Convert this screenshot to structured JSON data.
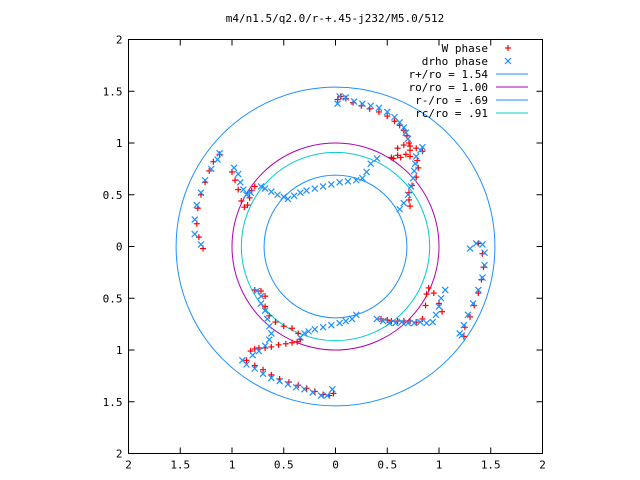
{
  "chart_data": {
    "type": "scatter",
    "title": "m4/n1.5/q2.0/r-+.45-j232/M5.0/512",
    "xlabel": "",
    "ylabel": "",
    "xlim": [
      -2,
      2
    ],
    "ylim": [
      -2,
      2
    ],
    "grid": false,
    "legend_position": "top-right",
    "x_tick_labels": [
      "2",
      "1.5",
      "1",
      "0.5",
      "0",
      "0.5",
      "1",
      "1.5",
      "2"
    ],
    "x_tick_values": [
      -2,
      -1.5,
      -1,
      -0.5,
      0,
      0.5,
      1,
      1.5,
      2
    ],
    "y_tick_labels": [
      "2",
      "1.5",
      "1",
      "0.5",
      "0",
      "0.5",
      "1",
      "1.5",
      "2"
    ],
    "y_tick_values": [
      2,
      1.5,
      1,
      0.5,
      0,
      -0.5,
      -1,
      -1.5,
      -2
    ],
    "series": [
      {
        "name": "W phase",
        "marker": "+",
        "color": "#ff0000",
        "points": [
          [
            0.02,
            1.42
          ],
          [
            0.05,
            1.45
          ],
          [
            0.1,
            1.43
          ],
          [
            0.17,
            1.39
          ],
          [
            0.25,
            1.36
          ],
          [
            0.33,
            1.33
          ],
          [
            0.42,
            1.3
          ],
          [
            0.5,
            1.26
          ],
          [
            0.57,
            1.21
          ],
          [
            0.62,
            1.17
          ],
          [
            0.66,
            1.12
          ],
          [
            0.69,
            1.07
          ],
          [
            0.71,
            1.0
          ],
          [
            0.72,
            0.93
          ],
          [
            0.68,
            0.89
          ],
          [
            0.6,
            0.88
          ],
          [
            0.54,
            0.86
          ],
          [
            0.56,
            0.85
          ],
          [
            0.63,
            0.86
          ],
          [
            0.72,
            0.87
          ],
          [
            0.79,
            0.83
          ],
          [
            0.8,
            0.76
          ],
          [
            0.78,
            0.67
          ],
          [
            0.74,
            0.59
          ],
          [
            0.71,
            0.52
          ],
          [
            0.71,
            0.45
          ],
          [
            0.72,
            0.39
          ],
          [
            0.84,
            0.92
          ],
          [
            0.78,
            0.95
          ],
          [
            0.72,
            0.97
          ],
          [
            0.66,
            0.98
          ],
          [
            0.6,
            0.95
          ],
          [
            1.38,
            0.03
          ],
          [
            1.42,
            -0.07
          ],
          [
            1.43,
            -0.2
          ],
          [
            1.41,
            -0.32
          ],
          [
            1.38,
            -0.45
          ],
          [
            1.34,
            -0.57
          ],
          [
            1.3,
            -0.68
          ],
          [
            1.25,
            -0.78
          ],
          [
            1.24,
            -0.87
          ],
          [
            1.03,
            -0.63
          ],
          [
            1.0,
            -0.55
          ],
          [
            0.95,
            -0.45
          ],
          [
            0.9,
            -0.4
          ],
          [
            0.88,
            -0.46
          ],
          [
            0.87,
            -0.57
          ],
          [
            0.84,
            -0.7
          ],
          [
            0.78,
            -0.73
          ],
          [
            0.72,
            -0.72
          ],
          [
            0.66,
            -0.72
          ],
          [
            0.6,
            -0.72
          ],
          [
            0.54,
            -0.72
          ],
          [
            0.5,
            -0.71
          ],
          [
            0.44,
            -0.7
          ],
          [
            -0.02,
            -1.42
          ],
          [
            -0.06,
            -1.44
          ],
          [
            -0.12,
            -1.43
          ],
          [
            -0.2,
            -1.4
          ],
          [
            -0.28,
            -1.37
          ],
          [
            -0.36,
            -1.34
          ],
          [
            -0.45,
            -1.31
          ],
          [
            -0.54,
            -1.28
          ],
          [
            -0.62,
            -1.24
          ],
          [
            -0.7,
            -1.19
          ],
          [
            -0.78,
            -1.15
          ],
          [
            -0.86,
            -1.1
          ],
          [
            -0.82,
            -1.01
          ],
          [
            -0.78,
            -0.99
          ],
          [
            -0.74,
            -0.98
          ],
          [
            -0.68,
            -0.98
          ],
          [
            -0.62,
            -0.97
          ],
          [
            -0.55,
            -0.95
          ],
          [
            -0.48,
            -0.94
          ],
          [
            -0.42,
            -0.93
          ],
          [
            -0.37,
            -0.92
          ],
          [
            -0.34,
            -0.9
          ],
          [
            -0.36,
            -0.84
          ],
          [
            -0.42,
            -0.79
          ],
          [
            -0.5,
            -0.77
          ],
          [
            -0.58,
            -0.73
          ],
          [
            -0.64,
            -0.67
          ],
          [
            -0.68,
            -0.58
          ],
          [
            -0.68,
            -0.48
          ],
          [
            -0.72,
            -0.43
          ],
          [
            -0.78,
            -0.42
          ],
          [
            -1.28,
            -0.02
          ],
          [
            -1.32,
            0.09
          ],
          [
            -1.34,
            0.22
          ],
          [
            -1.33,
            0.37
          ],
          [
            -1.3,
            0.5
          ],
          [
            -1.26,
            0.62
          ],
          [
            -1.22,
            0.73
          ],
          [
            -1.18,
            0.82
          ],
          [
            -1.12,
            0.89
          ],
          [
            -1.0,
            0.72
          ],
          [
            -0.97,
            0.64
          ],
          [
            -0.94,
            0.55
          ],
          [
            -0.91,
            0.44
          ],
          [
            -0.88,
            0.38
          ],
          [
            -0.85,
            0.4
          ],
          [
            -0.83,
            0.47
          ],
          [
            -0.81,
            0.54
          ],
          [
            -0.78,
            0.58
          ]
        ]
      },
      {
        "name": "drho phase",
        "marker": "x",
        "color": "#1e90ff",
        "points": [
          [
            0.02,
            1.38
          ],
          [
            0.04,
            1.45
          ],
          [
            0.1,
            1.44
          ],
          [
            0.18,
            1.4
          ],
          [
            0.26,
            1.38
          ],
          [
            0.34,
            1.36
          ],
          [
            0.42,
            1.34
          ],
          [
            0.5,
            1.3
          ],
          [
            0.57,
            1.25
          ],
          [
            0.62,
            1.2
          ],
          [
            0.66,
            1.15
          ],
          [
            0.68,
            1.1
          ],
          [
            0.7,
            1.04
          ],
          [
            0.4,
            0.85
          ],
          [
            0.34,
            0.8
          ],
          [
            0.3,
            0.72
          ],
          [
            0.26,
            0.66
          ],
          [
            0.2,
            0.64
          ],
          [
            0.12,
            0.63
          ],
          [
            0.04,
            0.62
          ],
          [
            -0.04,
            0.6
          ],
          [
            -0.12,
            0.58
          ],
          [
            -0.2,
            0.56
          ],
          [
            -0.28,
            0.54
          ],
          [
            -0.34,
            0.52
          ],
          [
            -0.4,
            0.49
          ],
          [
            -0.46,
            0.46
          ],
          [
            -0.5,
            0.48
          ],
          [
            -0.56,
            0.5
          ],
          [
            -0.62,
            0.53
          ],
          [
            -0.68,
            0.56
          ],
          [
            -0.72,
            0.58
          ],
          [
            0.62,
            0.36
          ],
          [
            0.66,
            0.42
          ],
          [
            0.7,
            0.5
          ],
          [
            0.73,
            0.58
          ],
          [
            0.75,
            0.66
          ],
          [
            0.76,
            0.73
          ],
          [
            0.77,
            0.8
          ],
          [
            0.78,
            0.87
          ],
          [
            0.82,
            0.93
          ],
          [
            0.84,
            0.96
          ],
          [
            1.3,
            -0.02
          ],
          [
            1.36,
            0.03
          ],
          [
            1.42,
            0.02
          ],
          [
            1.44,
            -0.06
          ],
          [
            1.44,
            -0.18
          ],
          [
            1.42,
            -0.3
          ],
          [
            1.38,
            -0.42
          ],
          [
            1.33,
            -0.55
          ],
          [
            1.28,
            -0.66
          ],
          [
            1.24,
            -0.76
          ],
          [
            1.2,
            -0.84
          ],
          [
            1.22,
            -0.86
          ],
          [
            1.06,
            -0.42
          ],
          [
            1.02,
            -0.5
          ],
          [
            1.0,
            -0.58
          ],
          [
            0.97,
            -0.66
          ],
          [
            0.94,
            -0.73
          ],
          [
            0.88,
            -0.74
          ],
          [
            0.82,
            -0.73
          ],
          [
            0.76,
            -0.74
          ],
          [
            0.7,
            -0.74
          ],
          [
            0.64,
            -0.73
          ],
          [
            0.58,
            -0.74
          ],
          [
            0.52,
            -0.74
          ],
          [
            0.46,
            -0.72
          ],
          [
            0.4,
            -0.7
          ],
          [
            -0.03,
            -1.38
          ],
          [
            -0.08,
            -1.44
          ],
          [
            -0.14,
            -1.44
          ],
          [
            -0.22,
            -1.41
          ],
          [
            -0.3,
            -1.38
          ],
          [
            -0.38,
            -1.36
          ],
          [
            -0.46,
            -1.33
          ],
          [
            -0.54,
            -1.3
          ],
          [
            -0.62,
            -1.27
          ],
          [
            -0.7,
            -1.23
          ],
          [
            -0.78,
            -1.18
          ],
          [
            -0.86,
            -1.14
          ],
          [
            -0.9,
            -1.1
          ],
          [
            -0.8,
            -1.05
          ],
          [
            -0.74,
            -1.01
          ],
          [
            -0.68,
            -0.96
          ],
          [
            -0.64,
            -0.9
          ],
          [
            -0.62,
            -0.84
          ],
          [
            -0.64,
            -0.77
          ],
          [
            -0.66,
            -0.7
          ],
          [
            -0.68,
            -0.62
          ],
          [
            -0.72,
            -0.55
          ],
          [
            -0.72,
            -0.48
          ],
          [
            -0.76,
            -0.43
          ],
          [
            -0.34,
            -0.88
          ],
          [
            -0.3,
            -0.84
          ],
          [
            -0.26,
            -0.82
          ],
          [
            -0.2,
            -0.8
          ],
          [
            -0.12,
            -0.78
          ],
          [
            -0.04,
            -0.76
          ],
          [
            0.04,
            -0.74
          ],
          [
            0.1,
            -0.72
          ],
          [
            0.16,
            -0.7
          ],
          [
            0.2,
            -0.66
          ],
          [
            -1.3,
            0.02
          ],
          [
            -1.36,
            0.12
          ],
          [
            -1.36,
            0.26
          ],
          [
            -1.34,
            0.4
          ],
          [
            -1.3,
            0.52
          ],
          [
            -1.26,
            0.64
          ],
          [
            -1.2,
            0.75
          ],
          [
            -1.14,
            0.84
          ],
          [
            -1.12,
            0.9
          ],
          [
            -0.98,
            0.76
          ],
          [
            -0.94,
            0.7
          ],
          [
            -0.92,
            0.62
          ],
          [
            -0.89,
            0.55
          ],
          [
            -0.86,
            0.5
          ],
          [
            -0.82,
            0.52
          ]
        ]
      },
      {
        "name": "r+/ro = 1.54",
        "shape": "circle",
        "radius": 1.54,
        "color": "#1e90ff"
      },
      {
        "name": "ro/ro = 1.00",
        "shape": "circle",
        "radius": 1.0,
        "color": "#b000b0"
      },
      {
        "name": "r-/ro = .69",
        "shape": "circle",
        "radius": 0.69,
        "color": "#1e90ff"
      },
      {
        "name": "rc/ro = .91",
        "shape": "circle",
        "radius": 0.91,
        "color": "#00cccc"
      }
    ]
  }
}
